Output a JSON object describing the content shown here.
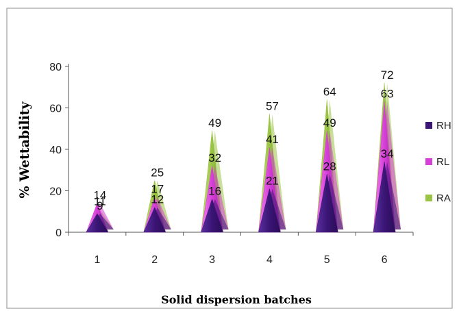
{
  "chart_data": {
    "type": "bar",
    "xlabel": "Solid dispersion batches",
    "ylabel": "% Wettability",
    "ylim": [
      0,
      80
    ],
    "yticks": [
      0,
      20,
      40,
      60,
      80
    ],
    "categories": [
      "1",
      "2",
      "3",
      "4",
      "5",
      "6"
    ],
    "series": [
      {
        "name": "RH",
        "values": [
          9,
          12,
          16,
          21,
          28,
          34
        ],
        "labels": [
          "9",
          "12",
          "16",
          "21",
          "28",
          "34"
        ]
      },
      {
        "name": "RL",
        "values": [
          14,
          17,
          32,
          41,
          49,
          63
        ],
        "labels": [
          "14",
          "17",
          "32",
          "41",
          "49",
          "63"
        ]
      },
      {
        "name": "RA",
        "values": [
          11,
          25,
          49,
          57,
          64,
          72
        ],
        "labels": [
          "11",
          "25",
          "49",
          "57",
          "64",
          "72"
        ]
      }
    ],
    "legend_position": "right",
    "grid": false,
    "colors": {
      "RH": "#3b1575",
      "RL": "#d63fd6",
      "RA": "#9ac444"
    }
  }
}
